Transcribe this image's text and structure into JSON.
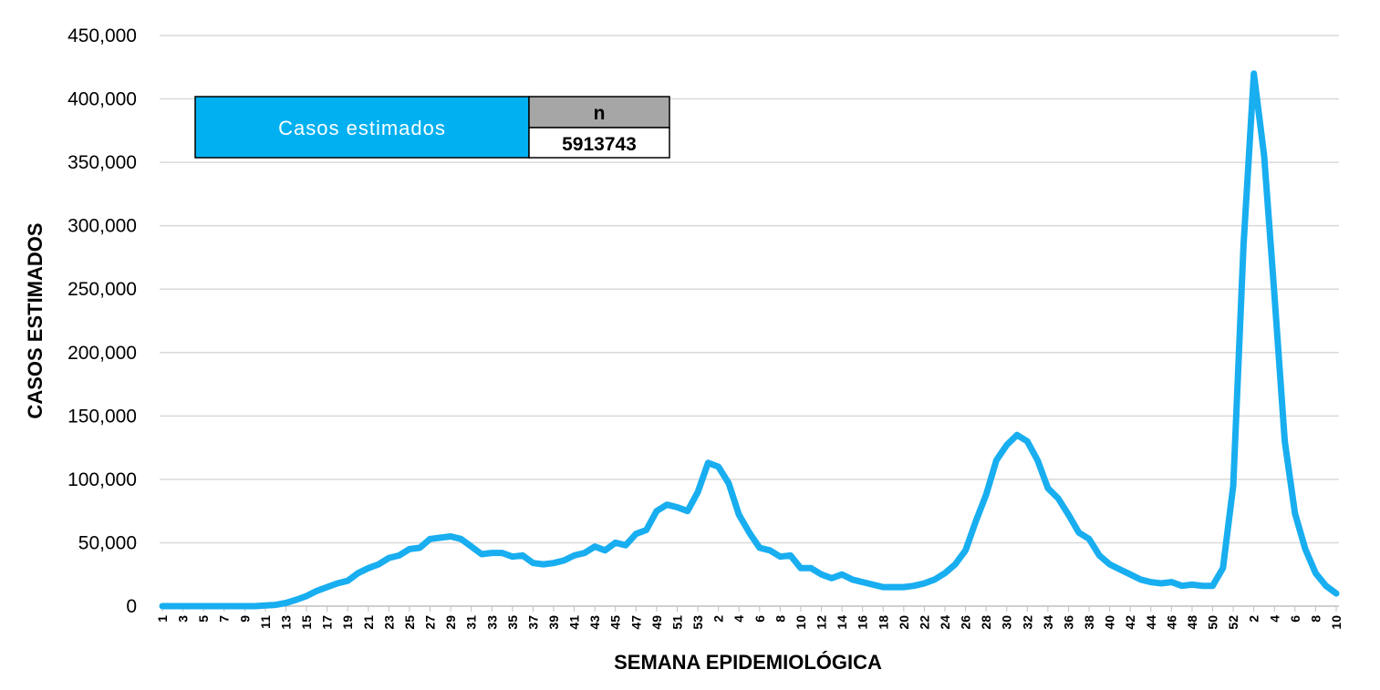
{
  "chart_data": {
    "type": "line",
    "title": "",
    "xlabel": "SEMANA EPIDEMIOLÓGICA",
    "ylabel": "CASOS ESTIMADOS",
    "ylim": [
      0,
      450000
    ],
    "yticks": [
      "0",
      "50,000",
      "100,000",
      "150,000",
      "200,000",
      "250,000",
      "300,000",
      "350,000",
      "400,000",
      "450,000"
    ],
    "grid": true,
    "line_color": "#18aef0",
    "x": [
      1,
      2,
      3,
      4,
      5,
      6,
      7,
      8,
      9,
      10,
      11,
      12,
      13,
      14,
      15,
      16,
      17,
      18,
      19,
      20,
      21,
      22,
      23,
      24,
      25,
      26,
      27,
      28,
      29,
      30,
      31,
      32,
      33,
      34,
      35,
      36,
      37,
      38,
      39,
      40,
      41,
      42,
      43,
      44,
      45,
      46,
      47,
      48,
      49,
      50,
      51,
      52,
      53,
      1,
      2,
      3,
      4,
      5,
      6,
      7,
      8,
      9,
      10,
      11,
      12,
      13,
      14,
      15,
      16,
      17,
      18,
      19,
      20,
      21,
      22,
      23,
      24,
      25,
      26,
      27,
      28,
      29,
      30,
      31,
      32,
      33,
      34,
      35,
      36,
      37,
      38,
      39,
      40,
      41,
      42,
      43,
      44,
      45,
      46,
      47,
      48,
      49,
      50,
      51,
      52,
      1,
      2,
      3,
      4,
      5,
      6,
      7,
      8,
      9,
      10
    ],
    "x_tick_labels": [
      "1",
      "3",
      "5",
      "7",
      "9",
      "11",
      "13",
      "15",
      "17",
      "19",
      "21",
      "23",
      "25",
      "27",
      "29",
      "31",
      "33",
      "35",
      "37",
      "39",
      "41",
      "43",
      "45",
      "47",
      "49",
      "51",
      "53",
      "2",
      "4",
      "6",
      "8",
      "10",
      "12",
      "14",
      "16",
      "18",
      "20",
      "22",
      "24",
      "26",
      "28",
      "30",
      "32",
      "34",
      "36",
      "38",
      "40",
      "42",
      "44",
      "46",
      "48",
      "50",
      "52",
      "2",
      "4",
      "6",
      "8",
      "10"
    ],
    "series": [
      {
        "values": [
          0,
          0,
          0,
          0,
          0,
          0,
          0,
          0,
          0,
          0,
          500,
          1000,
          2500,
          5000,
          8000,
          12000,
          15000,
          18000,
          20000,
          26000,
          30000,
          33000,
          38000,
          40000,
          45000,
          46000,
          53000,
          54000,
          55000,
          53000,
          47000,
          41000,
          42000,
          42000,
          39000,
          40000,
          34000,
          33000,
          34000,
          36000,
          40000,
          42000,
          47000,
          44000,
          50000,
          48000,
          57000,
          60000,
          75000,
          80000,
          78000,
          75000,
          90000,
          113000,
          110000,
          97000,
          72000,
          58000,
          46000,
          44000,
          39000,
          40000,
          30000,
          30000,
          25000,
          22000,
          25000,
          21000,
          19000,
          17000,
          15000,
          15000,
          15000,
          16000,
          18000,
          21000,
          26000,
          33000,
          44000,
          67000,
          88000,
          115000,
          127000,
          135000,
          130000,
          115000,
          93000,
          85000,
          72000,
          58000,
          53000,
          40000,
          33000,
          29000,
          25000,
          21000,
          19000,
          18000,
          19000,
          16000,
          17000,
          16000,
          16000,
          30000,
          95000,
          285000,
          420000,
          355000,
          245000,
          130000,
          73000,
          45000,
          26000,
          16000,
          10000
        ]
      }
    ]
  },
  "summary_box": {
    "label": "Casos estimados",
    "n_header": "n",
    "n_value": "5913743",
    "label_bg": "#00b0f0",
    "header_bg": "#a6a6a6"
  }
}
